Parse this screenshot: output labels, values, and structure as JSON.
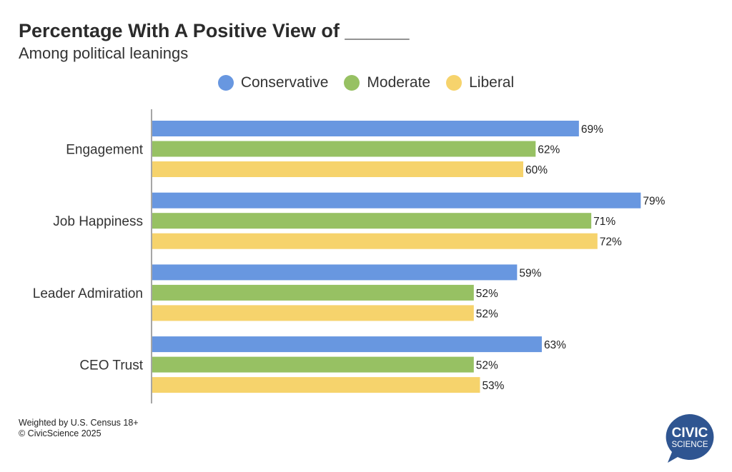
{
  "chart_data": {
    "type": "bar",
    "orientation": "horizontal",
    "title": "Percentage With A Positive View of ______",
    "subtitle": "Among political leanings",
    "categories": [
      "Engagement",
      "Job Happiness",
      "Leader Admiration",
      "CEO Trust"
    ],
    "series": [
      {
        "name": "Conservative",
        "color": "#6897e0",
        "values": [
          69,
          79,
          59,
          63
        ]
      },
      {
        "name": "Moderate",
        "color": "#97c163",
        "values": [
          62,
          71,
          52,
          52
        ]
      },
      {
        "name": "Liberal",
        "color": "#f6d36c",
        "values": [
          60,
          72,
          52,
          53
        ]
      }
    ],
    "value_suffix": "%",
    "xlim": [
      0,
      92
    ],
    "grid": false,
    "legend_position": "top"
  },
  "footer": {
    "note": "Weighted by U.S. Census 18+",
    "copyright": "© CivicScience 2025"
  },
  "logo": {
    "text_line1": "CIVIC",
    "text_line2": "SCIENCE",
    "color": "#2f5591"
  }
}
